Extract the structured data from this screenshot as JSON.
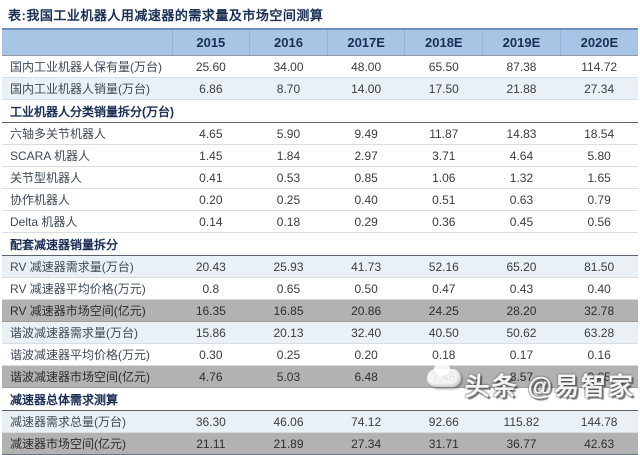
{
  "title": "表:我国工业机器人用减速器的需求量及市场空间测算",
  "table": {
    "columns": [
      "2015",
      "2016",
      "2017E",
      "2018E",
      "2019E",
      "2020E"
    ],
    "sections": [
      {
        "header": "",
        "rows": [
          {
            "label": "国内工业机器人保有量(万台)",
            "style": "plain",
            "values": [
              "25.60",
              "34.00",
              "48.00",
              "65.50",
              "87.38",
              "114.72"
            ]
          },
          {
            "label": "国内工业机器人销量(万台)",
            "style": "tint",
            "values": [
              "6.86",
              "8.70",
              "14.00",
              "17.50",
              "21.88",
              "27.34"
            ]
          }
        ]
      },
      {
        "header": "工业机器人分类销量拆分(万台)",
        "rows": [
          {
            "label": "六轴多关节机器人",
            "style": "plain",
            "values": [
              "4.65",
              "5.90",
              "9.49",
              "11.87",
              "14.83",
              "18.54"
            ]
          },
          {
            "label": "SCARA 机器人",
            "style": "plain",
            "values": [
              "1.45",
              "1.84",
              "2.97",
              "3.71",
              "4.64",
              "5.80"
            ]
          },
          {
            "label": "关节型机器人",
            "style": "plain",
            "values": [
              "0.41",
              "0.53",
              "0.85",
              "1.06",
              "1.32",
              "1.65"
            ]
          },
          {
            "label": "协作机器人",
            "style": "plain",
            "values": [
              "0.20",
              "0.25",
              "0.40",
              "0.51",
              "0.63",
              "0.79"
            ]
          },
          {
            "label": "Delta 机器人",
            "style": "plain",
            "values": [
              "0.14",
              "0.18",
              "0.29",
              "0.36",
              "0.45",
              "0.56"
            ]
          }
        ]
      },
      {
        "header": "配套减速器销量拆分",
        "rows": [
          {
            "label": "RV 减速器需求量(万台)",
            "style": "tint",
            "values": [
              "20.43",
              "25.93",
              "41.73",
              "52.16",
              "65.20",
              "81.50"
            ]
          },
          {
            "label": "RV 减速器平均价格(万元)",
            "style": "plain",
            "values": [
              "0.8",
              "0.65",
              "0.50",
              "0.47",
              "0.43",
              "0.40"
            ]
          },
          {
            "label": "RV 减速器市场空间(亿元)",
            "style": "gray",
            "values": [
              "16.35",
              "16.85",
              "20.86",
              "24.25",
              "28.20",
              "32.78"
            ]
          },
          {
            "label": "谐波减速器需求量(万台)",
            "style": "tint",
            "values": [
              "15.86",
              "20.13",
              "32.40",
              "40.50",
              "50.62",
              "63.28"
            ]
          },
          {
            "label": "谐波减速器平均价格(万元)",
            "style": "plain",
            "values": [
              "0.30",
              "0.25",
              "0.20",
              "0.18",
              "0.17",
              "0.16"
            ]
          },
          {
            "label": "谐波减速器市场空间(亿元)",
            "style": "gray",
            "values": [
              "4.76",
              "5.03",
              "6.48",
              "7.45",
              "8.57",
              "9.85"
            ]
          }
        ]
      },
      {
        "header": "减速器总体需求测算",
        "rows": [
          {
            "label": "减速器需求总量(万台)",
            "style": "tint",
            "values": [
              "36.30",
              "46.06",
              "74.12",
              "92.66",
              "115.82",
              "144.78"
            ]
          },
          {
            "label": "减速器市场空间(亿元)",
            "style": "gray",
            "values": [
              "21.11",
              "21.89",
              "27.34",
              "31.71",
              "36.77",
              "42.63"
            ]
          }
        ]
      }
    ]
  },
  "watermark": {
    "text": "头条 @易智家"
  },
  "colors": {
    "header_bg": "#a9c5e6",
    "header_text": "#1b2f55",
    "title_text": "#1b2f55",
    "row_tint": "#eaf1f6",
    "row_highlight_gray": "#b2b2b2",
    "section_border": "#5a6270"
  }
}
